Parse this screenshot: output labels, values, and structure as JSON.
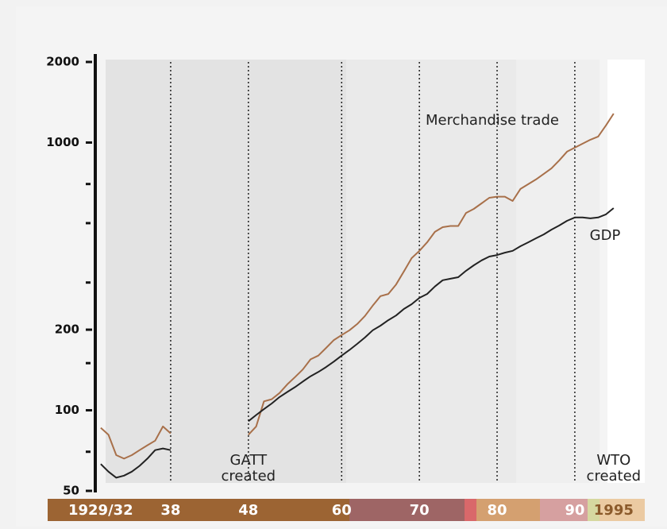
{
  "chart_data": {
    "type": "line",
    "log_y": true,
    "x": [
      1929,
      1930,
      1931,
      1932,
      1933,
      1934,
      1935,
      1936,
      1937,
      1938,
      1939,
      1948,
      1949,
      1950,
      1951,
      1952,
      1953,
      1954,
      1955,
      1956,
      1957,
      1958,
      1959,
      1960,
      1961,
      1962,
      1963,
      1964,
      1965,
      1966,
      1967,
      1968,
      1969,
      1970,
      1971,
      1972,
      1973,
      1974,
      1975,
      1976,
      1977,
      1978,
      1979,
      1980,
      1981,
      1982,
      1983,
      1984,
      1985,
      1986,
      1987,
      1988,
      1989,
      1990,
      1991,
      1992,
      1993,
      1994,
      1995
    ],
    "series": [
      {
        "name": "Merchandise trade",
        "color": "#a8704a",
        "values": [
          86,
          81,
          68,
          66,
          68,
          71,
          74,
          77,
          87,
          82,
          null,
          81,
          87,
          108,
          110,
          116,
          125,
          133,
          142,
          155,
          160,
          171,
          183,
          191,
          199,
          210,
          225,
          246,
          267,
          272,
          295,
          330,
          370,
          394,
          424,
          464,
          483,
          488,
          488,
          546,
          565,
          593,
          622,
          628,
          628,
          605,
          671,
          699,
          728,
          764,
          801,
          858,
          925,
          957,
          990,
          1025,
          1053,
          1159,
          1283
        ]
      },
      {
        "name": "GDP",
        "color": "#222222",
        "values": [
          63,
          59,
          56,
          57,
          59,
          62,
          66,
          71,
          72,
          71,
          null,
          91,
          96,
          101,
          106,
          112,
          117,
          122,
          128,
          134,
          139,
          145,
          152,
          160,
          168,
          177,
          187,
          199,
          207,
          217,
          226,
          239,
          249,
          263,
          272,
          290,
          306,
          310,
          314,
          332,
          348,
          363,
          375,
          380,
          388,
          394,
          410,
          424,
          439,
          454,
          473,
          490,
          510,
          525,
          525,
          521,
          525,
          539,
          569
        ]
      }
    ],
    "xlim": [
      1928.3,
      1999
    ],
    "xticks": [
      {
        "value": 1929,
        "label": "1929/32"
      },
      {
        "value": 1938,
        "label": "38"
      },
      {
        "value": 1948,
        "label": "48"
      },
      {
        "value": 1960,
        "label": "60"
      },
      {
        "value": 1970,
        "label": "70"
      },
      {
        "value": 1980,
        "label": "80"
      },
      {
        "value": 1990,
        "label": "90"
      },
      {
        "value": 1995,
        "label": "1995"
      }
    ],
    "ylim": [
      50,
      2000
    ],
    "yticks": [
      50,
      100,
      200,
      1000,
      2000
    ],
    "yminorticks": [
      70,
      150,
      300,
      500,
      700
    ],
    "annotations": [
      {
        "text": [
          "GATT",
          "created"
        ],
        "x": 1948
      },
      {
        "text": [
          "WTO",
          "created"
        ],
        "x": 1995
      }
    ]
  }
}
